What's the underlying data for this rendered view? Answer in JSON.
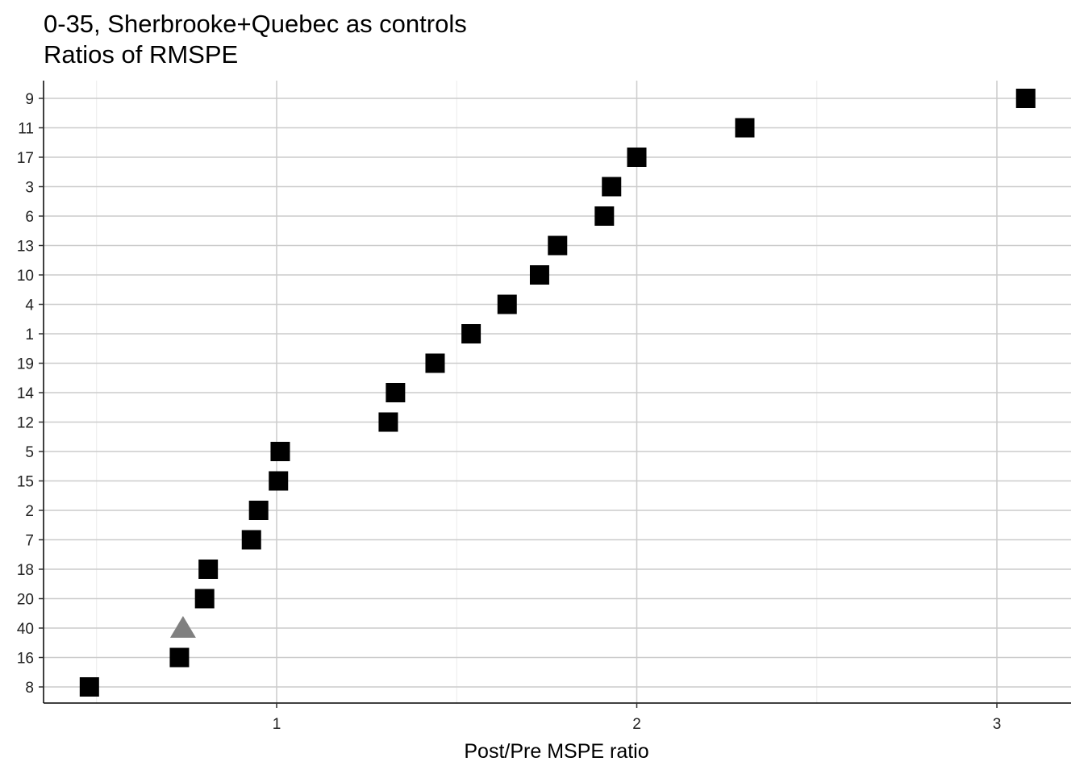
{
  "chart_data": {
    "type": "scatter",
    "title": "0-35, Sherbrooke+Quebec as controls",
    "subtitle": "Ratios of RMSPE",
    "xlabel": "Post/Pre MSPE ratio",
    "ylabel": "",
    "xlim": [
      0.35,
      3.2
    ],
    "x_ticks": [
      1,
      2,
      3
    ],
    "grid": true,
    "categories": [
      "8",
      "16",
      "40",
      "20",
      "18",
      "7",
      "2",
      "15",
      "5",
      "12",
      "14",
      "19",
      "1",
      "4",
      "10",
      "13",
      "6",
      "3",
      "17",
      "11",
      "9"
    ],
    "points": [
      {
        "label": "8",
        "x": 0.48,
        "group": "control"
      },
      {
        "label": "16",
        "x": 0.73,
        "group": "control"
      },
      {
        "label": "40",
        "x": 0.74,
        "group": "treated"
      },
      {
        "label": "20",
        "x": 0.8,
        "group": "control"
      },
      {
        "label": "18",
        "x": 0.81,
        "group": "control"
      },
      {
        "label": "7",
        "x": 0.93,
        "group": "control"
      },
      {
        "label": "2",
        "x": 0.95,
        "group": "control"
      },
      {
        "label": "15",
        "x": 1.005,
        "group": "control"
      },
      {
        "label": "5",
        "x": 1.01,
        "group": "control"
      },
      {
        "label": "12",
        "x": 1.31,
        "group": "control"
      },
      {
        "label": "14",
        "x": 1.33,
        "group": "control"
      },
      {
        "label": "19",
        "x": 1.44,
        "group": "control"
      },
      {
        "label": "1",
        "x": 1.54,
        "group": "control"
      },
      {
        "label": "4",
        "x": 1.64,
        "group": "control"
      },
      {
        "label": "10",
        "x": 1.73,
        "group": "control"
      },
      {
        "label": "13",
        "x": 1.78,
        "group": "control"
      },
      {
        "label": "6",
        "x": 1.91,
        "group": "control"
      },
      {
        "label": "3",
        "x": 1.93,
        "group": "control"
      },
      {
        "label": "17",
        "x": 2.0,
        "group": "control"
      },
      {
        "label": "11",
        "x": 2.3,
        "group": "control"
      },
      {
        "label": "9",
        "x": 3.08,
        "group": "control"
      }
    ],
    "colors": {
      "control": "#000000",
      "treated": "#808080",
      "grid_major": "#cccccc",
      "grid_minor": "#ebebeb"
    }
  }
}
